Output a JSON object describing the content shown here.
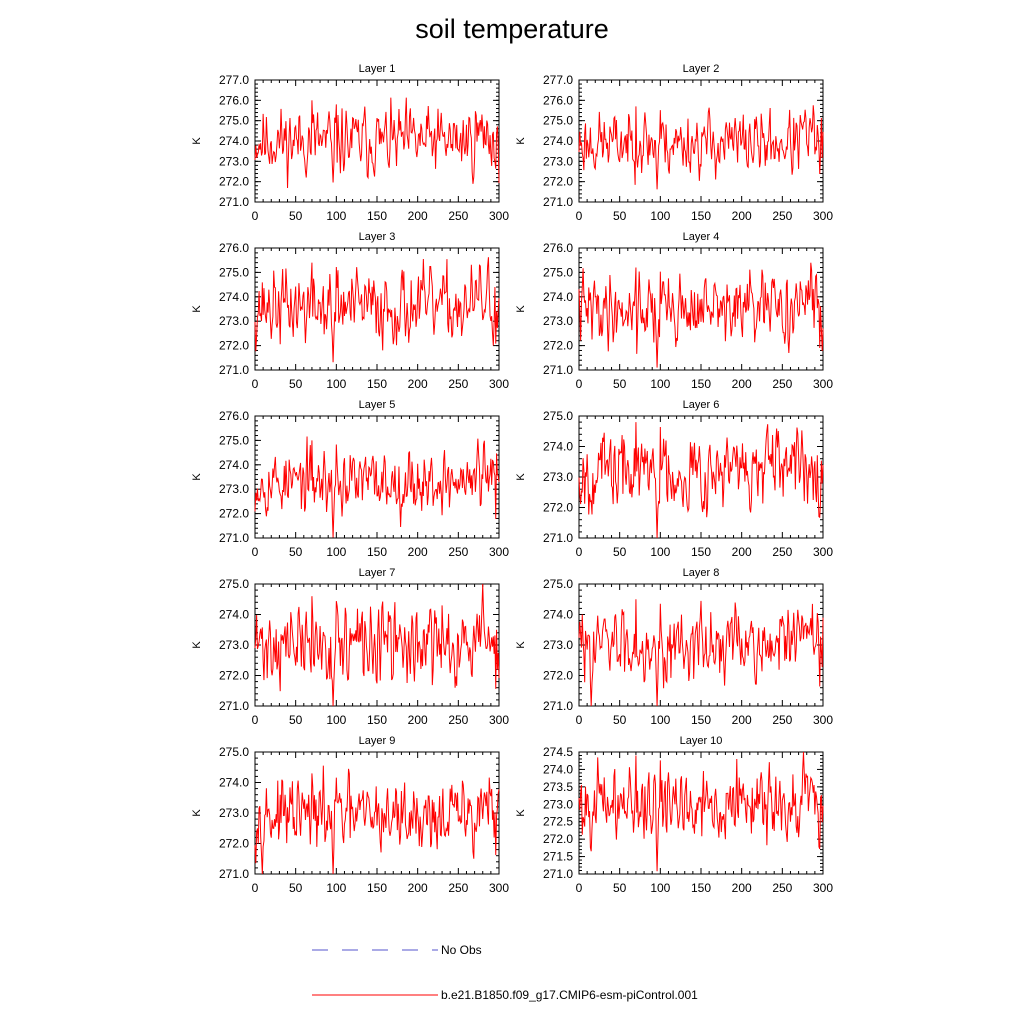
{
  "title": "soil temperature",
  "colors": {
    "series": "#ff0000",
    "obs": "#5555cc",
    "axis": "#000000"
  },
  "legend": {
    "obs_label": "No Obs",
    "series_label": "b.e21.B1850.f09_g17.CMIP6-esm-piControl.001"
  },
  "chart_data": [
    {
      "type": "line",
      "title": "Layer 1",
      "ylabel": "K",
      "xlim": [
        0,
        300
      ],
      "ylim": [
        271.0,
        277.0
      ],
      "xticks": [
        0,
        50,
        100,
        150,
        200,
        250,
        300
      ],
      "yticks": [
        271.0,
        272.0,
        273.0,
        274.0,
        275.0,
        276.0,
        277.0
      ],
      "ytick_labels": [
        "271.0",
        "272.0",
        "273.0",
        "274.0",
        "275.0",
        "276.0",
        "277.0"
      ],
      "mean": 274.0,
      "amp": 0.7,
      "dip": 1.7,
      "peak": 2.0,
      "seed": 11
    },
    {
      "type": "line",
      "title": "Layer 2",
      "ylabel": "K",
      "xlim": [
        0,
        300
      ],
      "ylim": [
        271.0,
        277.0
      ],
      "xticks": [
        0,
        50,
        100,
        150,
        200,
        250,
        300
      ],
      "yticks": [
        271.0,
        272.0,
        273.0,
        274.0,
        275.0,
        276.0,
        277.0
      ],
      "ytick_labels": [
        "271.0",
        "272.0",
        "273.0",
        "274.0",
        "275.0",
        "276.0",
        "277.0"
      ],
      "mean": 273.9,
      "amp": 0.65,
      "dip": 1.9,
      "peak": 1.8,
      "seed": 23
    },
    {
      "type": "line",
      "title": "Layer 3",
      "ylabel": "K",
      "xlim": [
        0,
        300
      ],
      "ylim": [
        271.0,
        276.0
      ],
      "xticks": [
        0,
        50,
        100,
        150,
        200,
        250,
        300
      ],
      "yticks": [
        271.0,
        272.0,
        273.0,
        274.0,
        275.0,
        276.0
      ],
      "ytick_labels": [
        "271.0",
        "272.0",
        "273.0",
        "274.0",
        "275.0",
        "276.0"
      ],
      "mean": 273.6,
      "amp": 0.65,
      "dip": 1.9,
      "peak": 1.8,
      "seed": 37
    },
    {
      "type": "line",
      "title": "Layer 4",
      "ylabel": "K",
      "xlim": [
        0,
        300
      ],
      "ylim": [
        271.0,
        276.0
      ],
      "xticks": [
        0,
        50,
        100,
        150,
        200,
        250,
        300
      ],
      "yticks": [
        271.0,
        272.0,
        273.0,
        274.0,
        275.0,
        276.0
      ],
      "ytick_labels": [
        "271.0",
        "272.0",
        "273.0",
        "274.0",
        "275.0",
        "276.0"
      ],
      "mean": 273.5,
      "amp": 0.6,
      "dip": 2.0,
      "peak": 1.7,
      "seed": 41
    },
    {
      "type": "line",
      "title": "Layer 5",
      "ylabel": "K",
      "xlim": [
        0,
        300
      ],
      "ylim": [
        271.0,
        276.0
      ],
      "xticks": [
        0,
        50,
        100,
        150,
        200,
        250,
        300
      ],
      "yticks": [
        271.0,
        272.0,
        273.0,
        274.0,
        275.0,
        276.0
      ],
      "ytick_labels": [
        "271.0",
        "272.0",
        "273.0",
        "274.0",
        "275.0",
        "276.0"
      ],
      "mean": 273.3,
      "amp": 0.55,
      "dip": 1.9,
      "peak": 1.7,
      "seed": 53
    },
    {
      "type": "line",
      "title": "Layer 6",
      "ylabel": "K",
      "xlim": [
        0,
        300
      ],
      "ylim": [
        271.0,
        275.0
      ],
      "xticks": [
        0,
        50,
        100,
        150,
        200,
        250,
        300
      ],
      "yticks": [
        271.0,
        272.0,
        273.0,
        274.0,
        275.0
      ],
      "ytick_labels": [
        "271.0",
        "272.0",
        "273.0",
        "274.0",
        "275.0"
      ],
      "mean": 273.2,
      "amp": 0.55,
      "dip": 1.9,
      "peak": 1.6,
      "seed": 67
    },
    {
      "type": "line",
      "title": "Layer 7",
      "ylabel": "K",
      "xlim": [
        0,
        300
      ],
      "ylim": [
        271.0,
        275.0
      ],
      "xticks": [
        0,
        50,
        100,
        150,
        200,
        250,
        300
      ],
      "yticks": [
        271.0,
        272.0,
        273.0,
        274.0,
        275.0
      ],
      "ytick_labels": [
        "271.0",
        "272.0",
        "273.0",
        "274.0",
        "275.0"
      ],
      "mean": 273.0,
      "amp": 0.55,
      "dip": 1.8,
      "peak": 1.6,
      "seed": 71
    },
    {
      "type": "line",
      "title": "Layer 8",
      "ylabel": "K",
      "xlim": [
        0,
        300
      ],
      "ylim": [
        271.0,
        275.0
      ],
      "xticks": [
        0,
        50,
        100,
        150,
        200,
        250,
        300
      ],
      "yticks": [
        271.0,
        272.0,
        273.0,
        274.0,
        275.0
      ],
      "ytick_labels": [
        "271.0",
        "272.0",
        "273.0",
        "274.0",
        "275.0"
      ],
      "mean": 273.0,
      "amp": 0.5,
      "dip": 1.7,
      "peak": 1.5,
      "seed": 83
    },
    {
      "type": "line",
      "title": "Layer 9",
      "ylabel": "K",
      "xlim": [
        0,
        300
      ],
      "ylim": [
        271.0,
        275.0
      ],
      "xticks": [
        0,
        50,
        100,
        150,
        200,
        250,
        300
      ],
      "yticks": [
        271.0,
        272.0,
        273.0,
        274.0,
        275.0
      ],
      "ytick_labels": [
        "271.0",
        "272.0",
        "273.0",
        "274.0",
        "275.0"
      ],
      "mean": 272.9,
      "amp": 0.5,
      "dip": 1.6,
      "peak": 1.4,
      "seed": 97
    },
    {
      "type": "line",
      "title": "Layer 10",
      "ylabel": "K",
      "xlim": [
        0,
        300
      ],
      "ylim": [
        271.0,
        274.5
      ],
      "xticks": [
        0,
        50,
        100,
        150,
        200,
        250,
        300
      ],
      "yticks": [
        271.0,
        271.5,
        272.0,
        272.5,
        273.0,
        273.5,
        274.0,
        274.5
      ],
      "ytick_labels": [
        "271.0",
        "271.5",
        "272.0",
        "272.5",
        "273.0",
        "273.5",
        "274.0",
        "274.5"
      ],
      "mean": 273.0,
      "amp": 0.45,
      "dip": 1.6,
      "peak": 1.4,
      "seed": 101
    }
  ]
}
